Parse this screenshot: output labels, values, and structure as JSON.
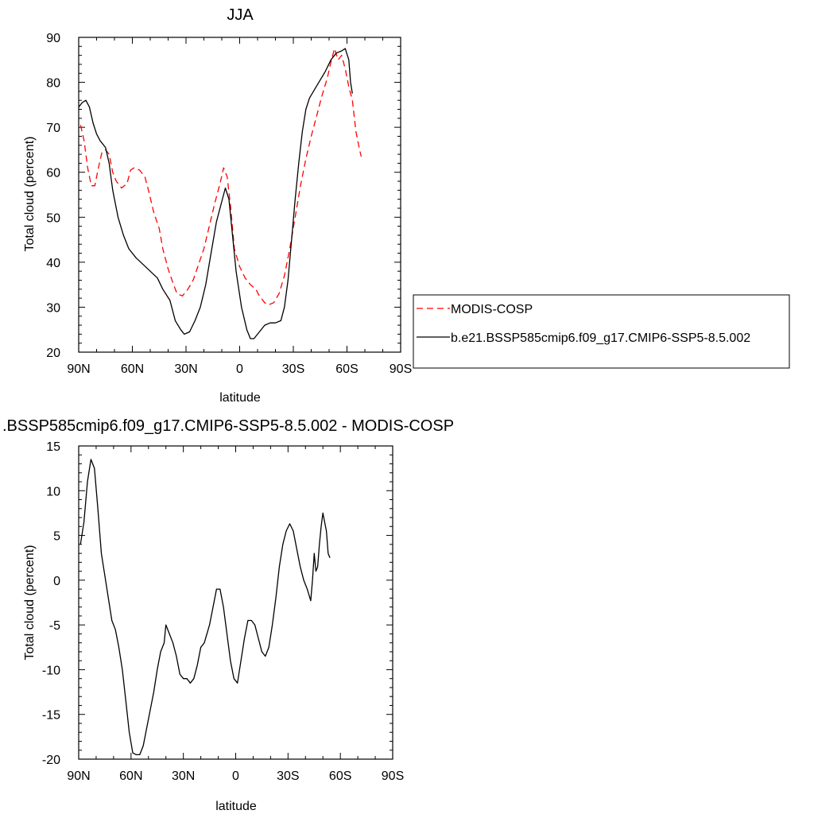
{
  "chart_data": [
    {
      "type": "line",
      "title": "JJA",
      "xlabel": "latitude",
      "ylabel": "Total cloud (percent)",
      "x_ticks": [
        -90,
        -60,
        -30,
        0,
        30,
        60,
        90
      ],
      "x_tick_labels": [
        "90N",
        "60N",
        "30N",
        "0",
        "30S",
        "60S",
        "90S"
      ],
      "xlim": [
        -90,
        90
      ],
      "ylim": [
        20,
        90
      ],
      "y_ticks": [
        20,
        30,
        40,
        50,
        60,
        70,
        80,
        90
      ],
      "y_tick_labels": [
        "20",
        "30",
        "40",
        "50",
        "60",
        "70",
        "80",
        "90"
      ],
      "grid": false,
      "legend_position": "right",
      "series": [
        {
          "name": "MODIS-COSP",
          "color": "#ff0000",
          "dash": "dashed",
          "points": [
            [
              -89,
              70.5
            ],
            [
              -87,
              67
            ],
            [
              -85,
              61
            ],
            [
              -83,
              57
            ],
            [
              -81,
              57
            ],
            [
              -79,
              61
            ],
            [
              -77,
              64.5
            ],
            [
              -75,
              65
            ],
            [
              -73,
              64
            ],
            [
              -71,
              60
            ],
            [
              -69,
              58
            ],
            [
              -66,
              56.5
            ],
            [
              -63,
              57.5
            ],
            [
              -61,
              60.5
            ],
            [
              -59,
              61
            ],
            [
              -56,
              60.5
            ],
            [
              -53,
              59
            ],
            [
              -51,
              56
            ],
            [
              -48,
              51
            ],
            [
              -45,
              47.5
            ],
            [
              -43,
              43
            ],
            [
              -40,
              38.5
            ],
            [
              -37,
              35
            ],
            [
              -35,
              33
            ],
            [
              -32,
              32.5
            ],
            [
              -29,
              34
            ],
            [
              -26,
              36
            ],
            [
              -23,
              39.5
            ],
            [
              -20,
              43
            ],
            [
              -17,
              48
            ],
            [
              -14,
              53
            ],
            [
              -11,
              57.5
            ],
            [
              -9,
              61
            ],
            [
              -7,
              59
            ],
            [
              -5,
              52
            ],
            [
              -3,
              43
            ],
            [
              0,
              39
            ],
            [
              3,
              36.5
            ],
            [
              6,
              35
            ],
            [
              9,
              34
            ],
            [
              11,
              32.5
            ],
            [
              14,
              31
            ],
            [
              16,
              30.5
            ],
            [
              19,
              31
            ],
            [
              22,
              33
            ],
            [
              25,
              37
            ],
            [
              28,
              43
            ],
            [
              31,
              50
            ],
            [
              34,
              57
            ],
            [
              37,
              63
            ],
            [
              40,
              68
            ],
            [
              43,
              72.5
            ],
            [
              46,
              77
            ],
            [
              49,
              81
            ],
            [
              51,
              84.5
            ],
            [
              53,
              87.5
            ],
            [
              55,
              85
            ],
            [
              57,
              86
            ],
            [
              59,
              83
            ],
            [
              61,
              79
            ],
            [
              63,
              76
            ],
            [
              65,
              69
            ],
            [
              67,
              65
            ],
            [
              68,
              63.5
            ]
          ]
        },
        {
          "name": "b.e21.BSSP585cmip6.f09_g17.CMIP6-SSP5-8.5.002",
          "color": "#000000",
          "dash": "solid",
          "points": [
            [
              -90,
              74.5
            ],
            [
              -88,
              75.5
            ],
            [
              -86,
              76
            ],
            [
              -84,
              74.5
            ],
            [
              -82,
              71
            ],
            [
              -80,
              68.5
            ],
            [
              -78,
              67
            ],
            [
              -75,
              65.5
            ],
            [
              -73,
              62
            ],
            [
              -71,
              56
            ],
            [
              -68,
              50
            ],
            [
              -65,
              46
            ],
            [
              -62,
              43
            ],
            [
              -58,
              41
            ],
            [
              -54,
              39.5
            ],
            [
              -50,
              38
            ],
            [
              -46,
              36.5
            ],
            [
              -43,
              34
            ],
            [
              -39,
              31.5
            ],
            [
              -36,
              27
            ],
            [
              -33,
              25
            ],
            [
              -31,
              24
            ],
            [
              -28,
              24.5
            ],
            [
              -25,
              27
            ],
            [
              -22,
              30
            ],
            [
              -19,
              35
            ],
            [
              -16,
              42
            ],
            [
              -13,
              49
            ],
            [
              -10,
              53.5
            ],
            [
              -8,
              56.5
            ],
            [
              -6,
              54
            ],
            [
              -4,
              46
            ],
            [
              -2,
              38
            ],
            [
              1,
              30
            ],
            [
              4,
              25
            ],
            [
              6,
              23
            ],
            [
              8,
              23
            ],
            [
              11,
              24.5
            ],
            [
              14,
              26
            ],
            [
              17,
              26.5
            ],
            [
              20,
              26.5
            ],
            [
              23,
              27
            ],
            [
              25,
              30
            ],
            [
              27,
              36
            ],
            [
              29,
              45
            ],
            [
              31,
              54
            ],
            [
              33,
              62
            ],
            [
              35,
              69
            ],
            [
              37,
              74
            ],
            [
              39,
              76.5
            ],
            [
              42,
              78.5
            ],
            [
              45,
              80.5
            ],
            [
              48,
              82.5
            ],
            [
              51,
              85
            ],
            [
              54,
              86.5
            ],
            [
              57,
              87
            ],
            [
              59,
              87.5
            ],
            [
              61,
              85
            ],
            [
              62,
              80
            ],
            [
              63,
              77.5
            ]
          ]
        }
      ]
    },
    {
      "type": "line",
      "title": ".BSSP585cmip6.f09_g17.CMIP6-SSP5-8.5.002 - MODIS-COSP",
      "xlabel": "latitude",
      "ylabel": "Total cloud (percent)",
      "x_ticks": [
        -90,
        -60,
        -30,
        0,
        30,
        60,
        90
      ],
      "x_tick_labels": [
        "90N",
        "60N",
        "30N",
        "0",
        "30S",
        "60S",
        "90S"
      ],
      "xlim": [
        -90,
        90
      ],
      "ylim": [
        -20,
        15
      ],
      "y_ticks": [
        -20,
        -15,
        -10,
        -5,
        0,
        5,
        10,
        15
      ],
      "y_tick_labels": [
        "-20",
        "-15",
        "-10",
        "-5",
        "0",
        "5",
        "10",
        "15"
      ],
      "grid": false,
      "series": [
        {
          "color": "#000000",
          "dash": "solid",
          "points": [
            [
              -89,
              4
            ],
            [
              -87,
              6.5
            ],
            [
              -85,
              11
            ],
            [
              -83,
              13.5
            ],
            [
              -81,
              12.5
            ],
            [
              -79,
              8
            ],
            [
              -77,
              3
            ],
            [
              -75,
              0.5
            ],
            [
              -73,
              -2
            ],
            [
              -71,
              -4.5
            ],
            [
              -69,
              -5.5
            ],
            [
              -67,
              -7.5
            ],
            [
              -65,
              -10
            ],
            [
              -63,
              -13.5
            ],
            [
              -61,
              -17
            ],
            [
              -59,
              -19.3
            ],
            [
              -57,
              -19.5
            ],
            [
              -55,
              -19.5
            ],
            [
              -53,
              -18.5
            ],
            [
              -51,
              -16.5
            ],
            [
              -49,
              -14.5
            ],
            [
              -47,
              -12.5
            ],
            [
              -45,
              -10
            ],
            [
              -43,
              -8
            ],
            [
              -41,
              -7
            ],
            [
              -40,
              -5
            ],
            [
              -38,
              -6
            ],
            [
              -36,
              -7
            ],
            [
              -34,
              -8.5
            ],
            [
              -32,
              -10.5
            ],
            [
              -30,
              -11
            ],
            [
              -28,
              -11
            ],
            [
              -26,
              -11.5
            ],
            [
              -24,
              -11
            ],
            [
              -22,
              -9.5
            ],
            [
              -20,
              -7.5
            ],
            [
              -18,
              -7
            ],
            [
              -15,
              -5
            ],
            [
              -13,
              -3
            ],
            [
              -11,
              -1
            ],
            [
              -9,
              -1
            ],
            [
              -7,
              -3
            ],
            [
              -5,
              -6
            ],
            [
              -3,
              -9
            ],
            [
              -1,
              -11
            ],
            [
              1,
              -11.5
            ],
            [
              3,
              -9
            ],
            [
              5,
              -6.5
            ],
            [
              7,
              -4.5
            ],
            [
              9,
              -4.5
            ],
            [
              11,
              -5
            ],
            [
              13,
              -6.5
            ],
            [
              15,
              -8
            ],
            [
              17,
              -8.5
            ],
            [
              19,
              -7.5
            ],
            [
              21,
              -5
            ],
            [
              23,
              -2
            ],
            [
              25,
              1.5
            ],
            [
              27,
              4
            ],
            [
              29,
              5.5
            ],
            [
              31,
              6.3
            ],
            [
              33,
              5.5
            ],
            [
              35,
              3.5
            ],
            [
              37,
              1.5
            ],
            [
              39,
              0
            ],
            [
              41,
              -1
            ],
            [
              43,
              -2.3
            ],
            [
              44,
              0
            ],
            [
              45,
              3
            ],
            [
              46,
              1
            ],
            [
              47,
              1.5
            ],
            [
              48,
              4
            ],
            [
              49,
              6
            ],
            [
              50,
              7.5
            ],
            [
              51,
              6.5
            ],
            [
              52,
              5.5
            ],
            [
              53,
              3
            ],
            [
              54,
              2.5
            ]
          ]
        }
      ]
    }
  ]
}
